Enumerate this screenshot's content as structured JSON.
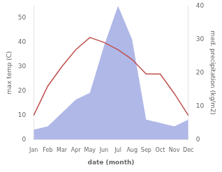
{
  "chart_data": {
    "type": "line",
    "xlabel": "date (month)",
    "ylabel": "max temp (C)",
    "y2label": "med. precipitation (kg/m2)",
    "categories": [
      "Jan",
      "Feb",
      "Mar",
      "Apr",
      "May",
      "Jun",
      "Jul",
      "Aug",
      "Sep",
      "Oct",
      "Nov",
      "Dec"
    ],
    "series": [
      {
        "type": "area",
        "axis": "y2",
        "color": "#b0b8e8",
        "values": [
          3,
          4,
          8,
          12,
          14,
          28,
          40,
          30,
          6,
          5,
          4,
          6
        ]
      },
      {
        "type": "line",
        "color": "#c0504d",
        "values": [
          10,
          22,
          30,
          37,
          42,
          40,
          37,
          33,
          27,
          27,
          19,
          10
        ]
      }
    ],
    "ylim": [
      0,
      55
    ],
    "yticks": [
      0,
      10,
      20,
      30,
      40,
      50
    ],
    "y2lim": [
      0,
      40
    ],
    "y2ticks": [
      0,
      10,
      20,
      30,
      40
    ],
    "grid": false
  }
}
